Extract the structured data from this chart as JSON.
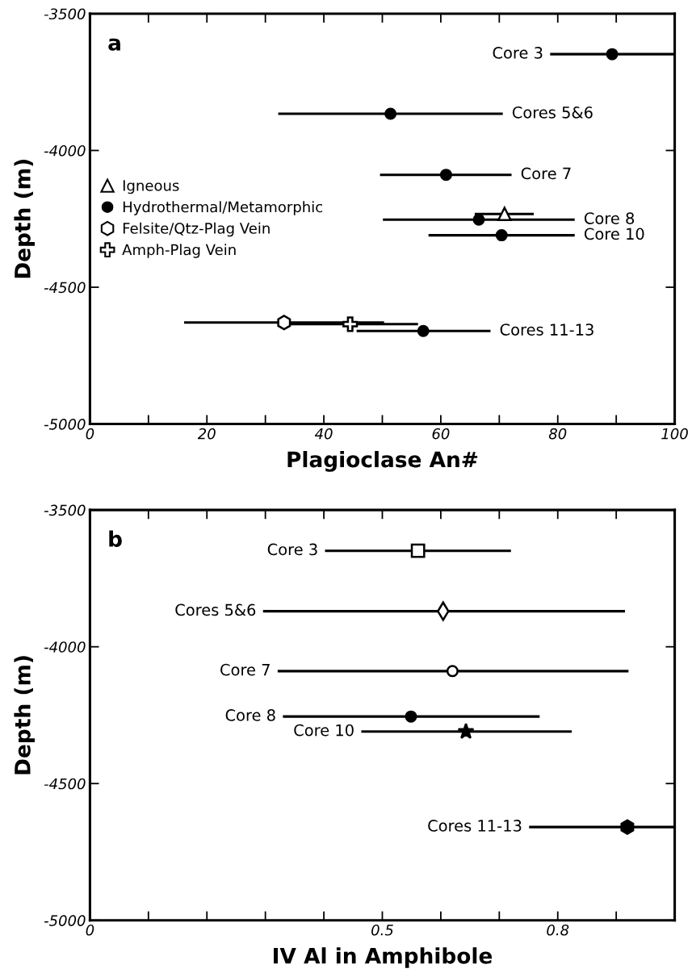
{
  "chart_data": [
    {
      "type": "scatter",
      "xlabel": "Plagioclase An#",
      "ylabel": "Depth (m)",
      "xlim": [
        0,
        100
      ],
      "ylim": [
        -5000,
        -3500
      ],
      "xticks": [
        0,
        {
          "value": 10,
          "label": null
        },
        20,
        {
          "value": 30,
          "label": null
        },
        40,
        {
          "value": 50,
          "label": null
        },
        60,
        {
          "value": 70,
          "label": null
        },
        80,
        {
          "value": 90,
          "label": null
        },
        100
      ],
      "yticks": [
        -5000,
        -4500,
        -4000,
        -3500
      ],
      "grid": false,
      "legend": "left",
      "annotations": [
        "a",
        "Core 3",
        "Cores 5&6",
        "Core 7",
        "Core 8",
        "Core 10",
        "Cores 11-13"
      ],
      "series": [
        {
          "name": "Igneous",
          "color": "#ffffff",
          "marker": "triangle",
          "x": [
            70.9
          ],
          "values": [
            -4232
          ],
          "xerrors": [
            [
              65.8,
              75.9
            ]
          ]
        },
        {
          "name": "Hydrothermal/Metamorphic",
          "color": "#000000",
          "marker": "circle",
          "x": [
            89.3,
            51.4,
            60.9,
            66.5,
            70.4,
            57.0
          ],
          "values": [
            -3648,
            -3866,
            -4089,
            -4253,
            -4310,
            -4660
          ],
          "xerrors": [
            [
              78.7,
              100
            ],
            [
              32.2,
              70.6
            ],
            [
              49.6,
              72.1
            ],
            [
              50.1,
              82.9
            ],
            [
              57.9,
              82.9
            ],
            [
              45.6,
              68.5
            ]
          ]
        },
        {
          "name": "Felsite/Qtz-Plag Vein",
          "color": "#ffffff",
          "x": [
            33.2
          ],
          "values": [
            -4629
          ],
          "xerrors": [
            [
              16.1,
              50.3
            ]
          ]
        },
        {
          "name": "Amph-Plag Vein",
          "color": "#ffffff",
          "marker": "cross",
          "x": [
            44.5
          ],
          "values": [
            -4635
          ],
          "xerrors": [
            [
              34.0,
              56.1
            ]
          ]
        }
      ]
    },
    {
      "type": "scatter",
      "xlabel": "IV Al in Amphibole",
      "ylabel": "Depth (m)",
      "xlim": [
        0,
        1.0
      ],
      "ylim": [
        -5000,
        -3500
      ],
      "xticks": [
        0,
        {
          "value": 0.1,
          "label": null
        },
        {
          "value": 0.2,
          "label": null
        },
        {
          "value": 0.3,
          "label": null
        },
        {
          "value": 0.4,
          "label": null
        },
        0.5,
        {
          "value": 0.6,
          "label": null
        },
        {
          "value": 0.7,
          "label": null
        },
        0.8,
        {
          "value": 0.9,
          "label": null
        },
        {
          "value": 1.0,
          "label": null
        }
      ],
      "yticks": [
        -5000,
        -4500,
        -4000,
        -3500
      ],
      "grid": false,
      "legend": false,
      "annotations": [
        "b",
        "Core 3",
        "Cores 5&6",
        "Core 7",
        "Core 8",
        "Core 10",
        "Cores 11-13"
      ],
      "series": [
        {
          "color": "#ffffff",
          "marker": "square",
          "x": [
            0.561
          ],
          "values": [
            -3649
          ],
          "xerrors": [
            [
              0.402,
              0.72
            ]
          ]
        },
        {
          "color": "#ffffff",
          "marker": "diamond",
          "x": [
            0.604
          ],
          "values": [
            -3870
          ],
          "xerrors": [
            [
              0.296,
              0.915
            ]
          ]
        },
        {
          "color": "#ffffff",
          "marker": "circle",
          "x": [
            0.62
          ],
          "values": [
            -4089
          ],
          "xerrors": [
            [
              0.321,
              0.921
            ]
          ]
        },
        {
          "color": "#000000",
          "marker": "circle",
          "x": [
            0.549
          ],
          "values": [
            -4255
          ],
          "xerrors": [
            [
              0.33,
              0.769
            ]
          ]
        },
        {
          "color": "#000000",
          "marker": "star",
          "x": [
            0.643
          ],
          "values": [
            -4310
          ],
          "xerrors": [
            [
              0.464,
              0.824
            ]
          ]
        },
        {
          "color": "#000000",
          "x": [
            0.919
          ],
          "values": [
            -4659
          ],
          "xerrors": [
            [
              0.751,
              1.0
            ]
          ]
        }
      ]
    }
  ]
}
